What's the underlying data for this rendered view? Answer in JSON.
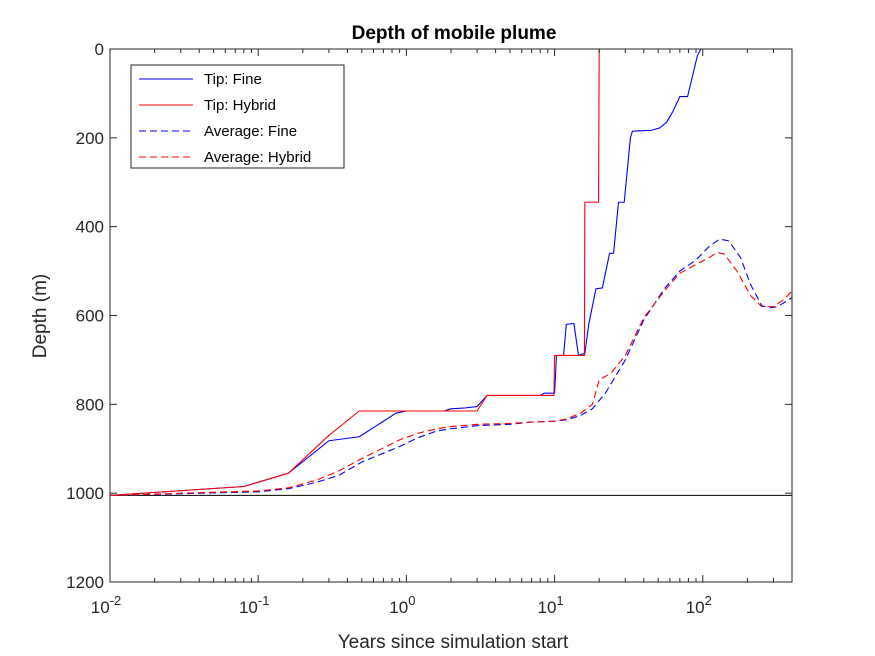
{
  "chart_data": {
    "type": "line",
    "title": "Depth of mobile plume",
    "xlabel": "Years since simulation start",
    "ylabel": "Depth (m)",
    "xscale": "log",
    "xlim": [
      0.01,
      400
    ],
    "ylim": [
      0,
      1200
    ],
    "y_reversed": true,
    "grid": false,
    "legend_position": "top-left",
    "x_ticks": [
      {
        "value": 0.01,
        "base": "10",
        "exp": "-2"
      },
      {
        "value": 0.1,
        "base": "10",
        "exp": "-1"
      },
      {
        "value": 1,
        "base": "10",
        "exp": "0"
      },
      {
        "value": 10,
        "base": "10",
        "exp": "1"
      },
      {
        "value": 100,
        "base": "10",
        "exp": "2"
      }
    ],
    "y_ticks": [
      0,
      200,
      400,
      600,
      800,
      1000,
      1200
    ],
    "reference_line": {
      "y": 1005,
      "color": "#000000"
    },
    "series": [
      {
        "name": "Tip: Fine",
        "color": "#0000ff",
        "style": "solid",
        "points": [
          [
            0.01,
            1005
          ],
          [
            0.08,
            985
          ],
          [
            0.16,
            955
          ],
          [
            0.3,
            882
          ],
          [
            0.48,
            873
          ],
          [
            0.65,
            845
          ],
          [
            0.85,
            820
          ],
          [
            1.0,
            815
          ],
          [
            1.8,
            815
          ],
          [
            2.0,
            810
          ],
          [
            2.5,
            808
          ],
          [
            3.0,
            805
          ],
          [
            3.5,
            780
          ],
          [
            8.0,
            780
          ],
          [
            8.5,
            775
          ],
          [
            10.0,
            775
          ],
          [
            10.3,
            690
          ],
          [
            11.5,
            690
          ],
          [
            12.0,
            620
          ],
          [
            13.5,
            618
          ],
          [
            14.5,
            690
          ],
          [
            15.0,
            688
          ],
          [
            16.0,
            686
          ],
          [
            17.0,
            620
          ],
          [
            19.0,
            540
          ],
          [
            21.0,
            538
          ],
          [
            23.5,
            460
          ],
          [
            25.0,
            460
          ],
          [
            27.0,
            345
          ],
          [
            29.5,
            345
          ],
          [
            32.5,
            200
          ],
          [
            33.5,
            185
          ],
          [
            45.0,
            183
          ],
          [
            51.0,
            178
          ],
          [
            57.0,
            165
          ],
          [
            63.0,
            140
          ],
          [
            70.0,
            107
          ],
          [
            79.0,
            107
          ],
          [
            92.0,
            15
          ],
          [
            97.0,
            0
          ],
          [
            400.0,
            0
          ]
        ]
      },
      {
        "name": "Tip: Hybrid",
        "color": "#ff0000",
        "style": "solid",
        "points": [
          [
            0.01,
            1005
          ],
          [
            0.08,
            985
          ],
          [
            0.16,
            955
          ],
          [
            0.3,
            870
          ],
          [
            0.48,
            815
          ],
          [
            3.0,
            815
          ],
          [
            3.5,
            780
          ],
          [
            9.9,
            780
          ],
          [
            10.0,
            690
          ],
          [
            15.9,
            690
          ],
          [
            16.0,
            345
          ],
          [
            19.8,
            345
          ],
          [
            20.0,
            0
          ],
          [
            400.0,
            0
          ]
        ]
      },
      {
        "name": "Average: Fine",
        "color": "#0000ff",
        "style": "dashed",
        "points": [
          [
            0.01,
            1005
          ],
          [
            0.1,
            997
          ],
          [
            0.16,
            990
          ],
          [
            0.25,
            975
          ],
          [
            0.35,
            960
          ],
          [
            0.5,
            930
          ],
          [
            0.7,
            910
          ],
          [
            0.9,
            895
          ],
          [
            1.2,
            875
          ],
          [
            1.6,
            860
          ],
          [
            2.0,
            855
          ],
          [
            3.0,
            848
          ],
          [
            5.0,
            845
          ],
          [
            7.0,
            840
          ],
          [
            10.0,
            838
          ],
          [
            12.0,
            835
          ],
          [
            15.0,
            825
          ],
          [
            18.0,
            810
          ],
          [
            22.0,
            775
          ],
          [
            30.0,
            700
          ],
          [
            40.0,
            610
          ],
          [
            55.0,
            540
          ],
          [
            70.0,
            500
          ],
          [
            90.0,
            475
          ],
          [
            110.0,
            445
          ],
          [
            130.0,
            428
          ],
          [
            150.0,
            432
          ],
          [
            180.0,
            470
          ],
          [
            210.0,
            530
          ],
          [
            250.0,
            578
          ],
          [
            280.0,
            583
          ],
          [
            320.0,
            580
          ],
          [
            400.0,
            560
          ]
        ]
      },
      {
        "name": "Average: Hybrid",
        "color": "#ff0000",
        "style": "dashed",
        "points": [
          [
            0.01,
            1005
          ],
          [
            0.1,
            995
          ],
          [
            0.16,
            988
          ],
          [
            0.25,
            970
          ],
          [
            0.35,
            950
          ],
          [
            0.5,
            922
          ],
          [
            0.7,
            898
          ],
          [
            0.9,
            880
          ],
          [
            1.2,
            865
          ],
          [
            1.6,
            855
          ],
          [
            2.0,
            850
          ],
          [
            3.0,
            845
          ],
          [
            5.0,
            843
          ],
          [
            7.0,
            840
          ],
          [
            10.0,
            838
          ],
          [
            12.0,
            833
          ],
          [
            15.0,
            820
          ],
          [
            18.0,
            800
          ],
          [
            20.0,
            745
          ],
          [
            24.0,
            730
          ],
          [
            30.0,
            690
          ],
          [
            40.0,
            605
          ],
          [
            55.0,
            545
          ],
          [
            70.0,
            505
          ],
          [
            90.0,
            485
          ],
          [
            110.0,
            470
          ],
          [
            125.0,
            458
          ],
          [
            140.0,
            462
          ],
          [
            170.0,
            500
          ],
          [
            210.0,
            555
          ],
          [
            250.0,
            580
          ],
          [
            300.0,
            580
          ],
          [
            350.0,
            565
          ],
          [
            400.0,
            545
          ]
        ]
      }
    ]
  }
}
